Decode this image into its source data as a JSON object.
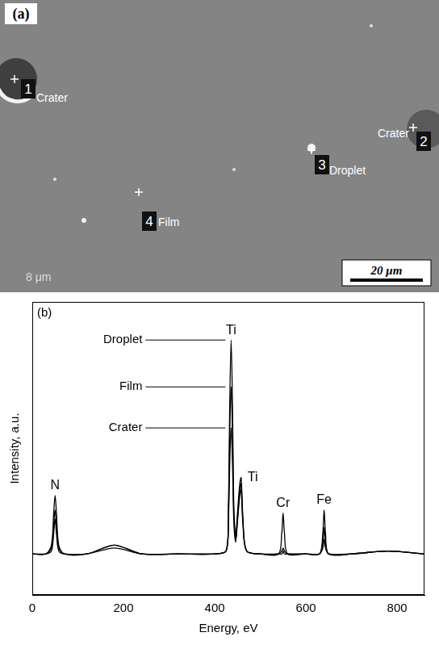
{
  "micrograph": {
    "label": "(a)",
    "markers": [
      {
        "number": 1,
        "text": "Crater"
      },
      {
        "number": 2,
        "text": "Crater"
      },
      {
        "number": 3,
        "text": "Droplet"
      },
      {
        "number": 4,
        "text": "Film"
      }
    ],
    "scale_bar": "20 μm",
    "corner_text": "8 μm"
  },
  "chart_data": {
    "type": "line",
    "panel_label": "(b)",
    "x_label": "Energy, eV",
    "y_label": "Intensity, a.u.",
    "x": [
      0,
      30,
      42,
      47,
      50,
      53,
      58,
      70,
      120,
      180,
      240,
      320,
      400,
      425,
      430,
      433,
      436,
      439,
      442,
      446,
      450,
      455,
      458,
      462,
      470,
      500,
      540,
      547,
      550,
      553,
      560,
      600,
      630,
      637,
      640,
      643,
      650,
      700,
      780,
      860
    ],
    "series": [
      {
        "name": "Droplet",
        "color": "#000000",
        "values": [
          14,
          14,
          16,
          24,
          29,
          24,
          16,
          14,
          14,
          16,
          14,
          14,
          14,
          15,
          30,
          65,
          87,
          65,
          30,
          20,
          28,
          38,
          40,
          26,
          15,
          14,
          14,
          14,
          15,
          14,
          14,
          14,
          14,
          16,
          19,
          16,
          14,
          14,
          15,
          14
        ]
      },
      {
        "name": "Film",
        "color": "#000000",
        "values": [
          14,
          14,
          17,
          28,
          34,
          28,
          17,
          14,
          14,
          17,
          14,
          14,
          14,
          15,
          27,
          55,
          71,
          55,
          27,
          19,
          26,
          36,
          38,
          25,
          15,
          14,
          14,
          15,
          16,
          15,
          14,
          14,
          14,
          18,
          23,
          18,
          14,
          14,
          15,
          14
        ]
      },
      {
        "name": "Crater",
        "color": "#000000",
        "values": [
          14,
          14,
          15,
          21,
          26,
          21,
          15,
          14,
          14,
          17,
          14,
          14,
          14,
          15,
          25,
          45,
          57,
          45,
          25,
          18,
          25,
          34,
          36,
          24,
          15,
          14,
          14,
          21,
          28,
          21,
          14,
          14,
          14,
          21,
          29,
          21,
          14,
          14,
          15,
          14
        ]
      }
    ],
    "annotations": [
      {
        "text": "N",
        "x": 50
      },
      {
        "text": "Ti",
        "x": 436
      },
      {
        "text": "Ti",
        "x": 458
      },
      {
        "text": "Cr",
        "x": 550
      },
      {
        "text": "Fe",
        "x": 640
      }
    ],
    "xlim": [
      0,
      860
    ],
    "xticks": [
      0,
      200,
      400,
      600,
      800
    ],
    "ylim": [
      0,
      100
    ],
    "yticks": [],
    "tick_labels": "x",
    "grid": false
  }
}
